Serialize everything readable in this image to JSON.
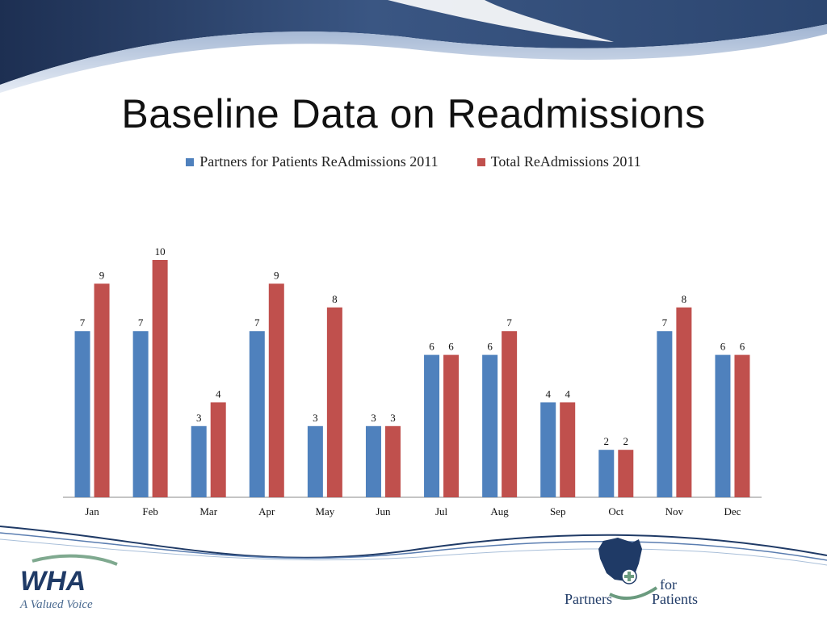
{
  "slide": {
    "title": "Baseline Data on Readmissions"
  },
  "colors": {
    "series1": "#4f81bd",
    "series2": "#c0504d",
    "axis": "#888888"
  },
  "chart_data": {
    "type": "bar",
    "categories": [
      "Jan",
      "Feb",
      "Mar",
      "Apr",
      "May",
      "Jun",
      "Jul",
      "Aug",
      "Sep",
      "Oct",
      "Nov",
      "Dec"
    ],
    "series": [
      {
        "name": "Partners for Patients ReAdmissions 2011",
        "values": [
          7,
          7,
          3,
          7,
          3,
          3,
          6,
          6,
          4,
          2,
          7,
          6
        ]
      },
      {
        "name": "Total ReAdmissions 2011",
        "values": [
          9,
          10,
          4,
          9,
          8,
          3,
          6,
          7,
          4,
          2,
          8,
          6
        ]
      }
    ],
    "ylim": [
      0,
      10
    ],
    "grid": false,
    "legend": "top",
    "data_labels": true
  },
  "logos": {
    "left": {
      "mark": "WHA",
      "tagline": "A Valued Voice"
    },
    "right": {
      "line1": "for",
      "line2a": "Partners",
      "line2b": "Patients"
    }
  }
}
